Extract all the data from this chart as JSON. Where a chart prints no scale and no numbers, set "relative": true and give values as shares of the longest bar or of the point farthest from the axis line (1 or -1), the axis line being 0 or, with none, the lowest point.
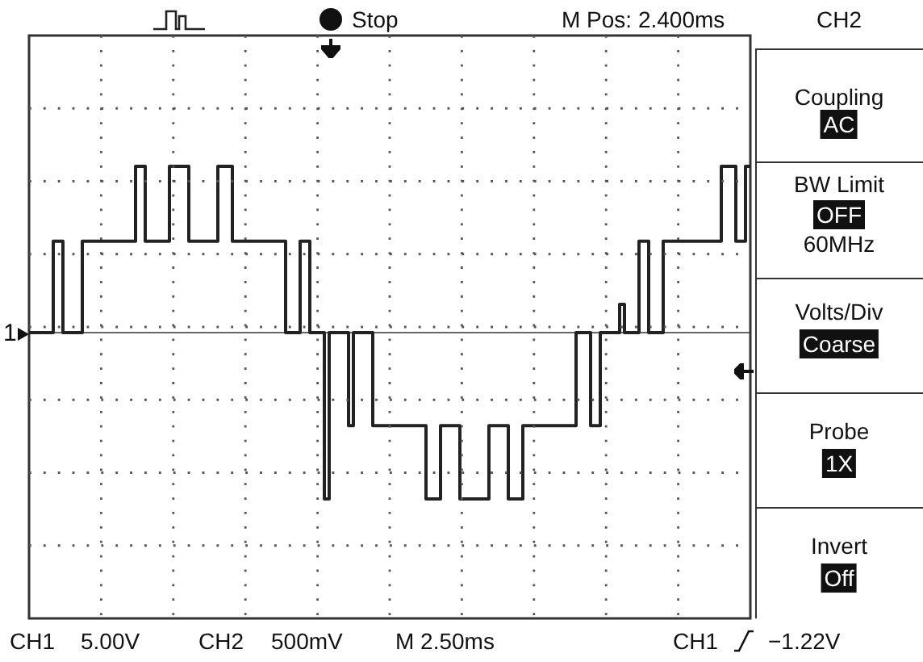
{
  "chart_data": {
    "type": "step",
    "relative": true,
    "legend": false,
    "categories": [
      null,
      null,
      null,
      null,
      null,
      null,
      null,
      null,
      null,
      null,
      null,
      null,
      null,
      null,
      null,
      null,
      null,
      null,
      null,
      null,
      null,
      null,
      null,
      null,
      null,
      null,
      null,
      null,
      null,
      null,
      null,
      null,
      null,
      null,
      null,
      null,
      null,
      null,
      null,
      null,
      null,
      null,
      null,
      null,
      null,
      null,
      null,
      null,
      null,
      null,
      null,
      null,
      null,
      null,
      null,
      null,
      null,
      null,
      null,
      null,
      null,
      null,
      null,
      null,
      null,
      null,
      null,
      null,
      null,
      null,
      null,
      null,
      null,
      null,
      null,
      null,
      null,
      null,
      null,
      null,
      null,
      null,
      null,
      null,
      null,
      null,
      null,
      null,
      null,
      null,
      null,
      null,
      null,
      null,
      null,
      null,
      null,
      null,
      null,
      null,
      null,
      null,
      null,
      null,
      null,
      null,
      null,
      null,
      null,
      null,
      null,
      null,
      null,
      null,
      null,
      null,
      null,
      null,
      null,
      null,
      null,
      null,
      null,
      null,
      null,
      null,
      null,
      null,
      null,
      null,
      null,
      null,
      null,
      null,
      null,
      null,
      null,
      null,
      null,
      null,
      null,
      null,
      null,
      null,
      null,
      null,
      null,
      null,
      null,
      null
    ],
    "series": [
      {
        "color": "#222222",
        "values": [
          0,
          0,
          0,
          0,
          0,
          0.55,
          0.55,
          0,
          0,
          0,
          0,
          0.55,
          0.55,
          0.55,
          0.55,
          0.55,
          0.55,
          0.55,
          0.55,
          0.55,
          0.55,
          0.55,
          1,
          1,
          0.55,
          0.55,
          0.55,
          0.55,
          0.55,
          1,
          1,
          1,
          1,
          0.55,
          0.55,
          0.55,
          0.55,
          0.55,
          0.55,
          1,
          1,
          1,
          0.55,
          0.55,
          0.55,
          0.55,
          0.55,
          0.55,
          0.55,
          0.55,
          0.55,
          0.55,
          0.55,
          0,
          0,
          0,
          0.55,
          0.55,
          0,
          0,
          0,
          -1,
          0,
          0,
          0,
          0,
          -0.56,
          0,
          0,
          0,
          0,
          -0.56,
          -0.56,
          -0.56,
          -0.56,
          -0.56,
          -0.56,
          -0.56,
          -0.56,
          -0.56,
          -0.56,
          -0.56,
          -1,
          -1,
          -1,
          -0.56,
          -0.56,
          -0.56,
          -0.56,
          -1,
          -1,
          -1,
          -1,
          -1,
          -1,
          -0.56,
          -0.56,
          -0.56,
          -0.56,
          -1,
          -1,
          -1,
          -0.56,
          -0.56,
          -0.56,
          -0.56,
          -0.56,
          -0.56,
          -0.56,
          -0.56,
          -0.56,
          -0.56,
          -0.56,
          0,
          0,
          0,
          -0.56,
          -0.56,
          0,
          0,
          0,
          0,
          0.17,
          0,
          0,
          0,
          0.55,
          0.55,
          0,
          0,
          0,
          0.55,
          0.55,
          0.55,
          0.55,
          0.55,
          0.55,
          0.55,
          0.55,
          0.55,
          0.55,
          0.55,
          0.55,
          1,
          1,
          1,
          0.55,
          0.55,
          1,
          1
        ]
      }
    ],
    "annotations": [
      "Stop",
      "M Pos: 2.400ms",
      "CH2",
      "Coupling",
      "AC",
      "BW Limit",
      "OFF",
      "60MHz",
      "Volts/Div",
      "Coarse",
      "Probe",
      "1X",
      "Invert",
      "Off",
      "CH1",
      "5.00V",
      "CH2",
      "500mV",
      "M 2.50ms",
      "CH1",
      "−1.22V",
      "1"
    ]
  }
}
